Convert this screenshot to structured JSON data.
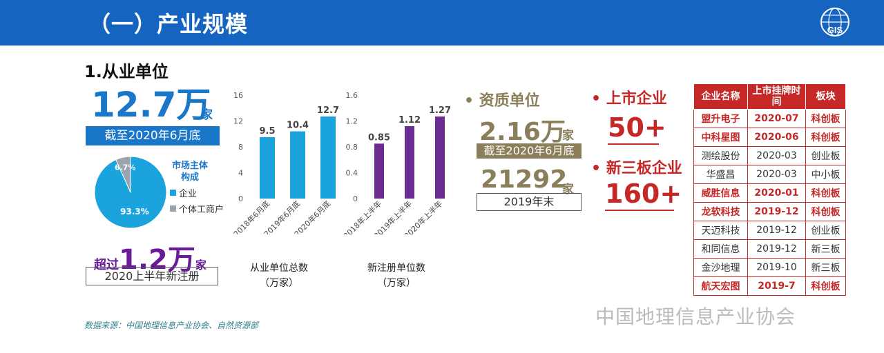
{
  "header": {
    "title": "（一）产业规模",
    "logo_text": "GIS"
  },
  "section": {
    "title": "1.从业单位"
  },
  "total_units": {
    "value": "12.7万",
    "unit": "家",
    "note": "截至2020年6月底"
  },
  "pie": {
    "title": "市场主体构成",
    "slices": [
      {
        "label": "企业",
        "percent": 93.3,
        "display": "93.3%",
        "color": "#1aa3dc"
      },
      {
        "label": "个体工商户",
        "percent": 6.7,
        "display": "6.7%",
        "color": "#9aa4ae"
      }
    ]
  },
  "new_registered": {
    "prefix": "超过",
    "value": "1.2万",
    "unit": "家",
    "note": "2020上半年新注册"
  },
  "chart_data": [
    {
      "type": "bar",
      "title": "从业单位总数",
      "unit": "（万家）",
      "categories": [
        "2018年6月底",
        "2019年6月底",
        "2020年6月底"
      ],
      "values": [
        9.5,
        10.4,
        12.7
      ],
      "labels": [
        "9.5",
        "10.4",
        "12.7"
      ],
      "yticks": [
        "0",
        "4",
        "8",
        "12",
        "16"
      ],
      "ylim": [
        0,
        16
      ],
      "color": "#1aa3dc"
    },
    {
      "type": "bar",
      "title": "新注册单位数",
      "unit": "（万家）",
      "categories": [
        "2018年上半年",
        "2019年上半年",
        "2020年上半年"
      ],
      "values": [
        0.85,
        1.12,
        1.27
      ],
      "labels": [
        "0.85",
        "1.12",
        "1.27"
      ],
      "yticks": [
        "0",
        "0.4",
        "0.8",
        "1.2",
        "1.6"
      ],
      "ylim": [
        0,
        1.6
      ],
      "color": "#6a2c91"
    }
  ],
  "qualified": {
    "bullet": "•",
    "title": "资质单位",
    "value1": "2.16万",
    "unit1": "家",
    "note1": "截至2020年6月底",
    "value2": "21292",
    "unit2": "家",
    "note2": "2019年末"
  },
  "listed": {
    "bullet": "•",
    "title": "上市企业",
    "value": "50+"
  },
  "neeq": {
    "bullet": "•",
    "title": "新三板企业",
    "value": "160+"
  },
  "table": {
    "headers": [
      "企业名称",
      "上市挂牌时间",
      "板块"
    ],
    "rows": [
      {
        "name": "盟升电子",
        "date": "2020-07",
        "board": "科创板",
        "bold": true
      },
      {
        "name": "中科星图",
        "date": "2020-06",
        "board": "科创板",
        "bold": true
      },
      {
        "name": "测绘股份",
        "date": "2020-03",
        "board": "创业板",
        "bold": false
      },
      {
        "name": "华盛昌",
        "date": "2020-03",
        "board": "中小板",
        "bold": false
      },
      {
        "name": "威胜信息",
        "date": "2020-01",
        "board": "科创板",
        "bold": true
      },
      {
        "name": "龙软科技",
        "date": "2019-12",
        "board": "科创板",
        "bold": true
      },
      {
        "name": "天迈科技",
        "date": "2019-12",
        "board": "创业板",
        "bold": false
      },
      {
        "name": "和同信息",
        "date": "2019-12",
        "board": "新三板",
        "bold": false
      },
      {
        "name": "金沙地理",
        "date": "2019-10",
        "board": "新三板",
        "bold": false
      },
      {
        "name": "航天宏图",
        "date": "2019-7",
        "board": "科创板",
        "bold": true
      }
    ]
  },
  "source": "数据来源：中国地理信息产业协会、自然资源部",
  "watermark": "中国地理信息产业协会"
}
